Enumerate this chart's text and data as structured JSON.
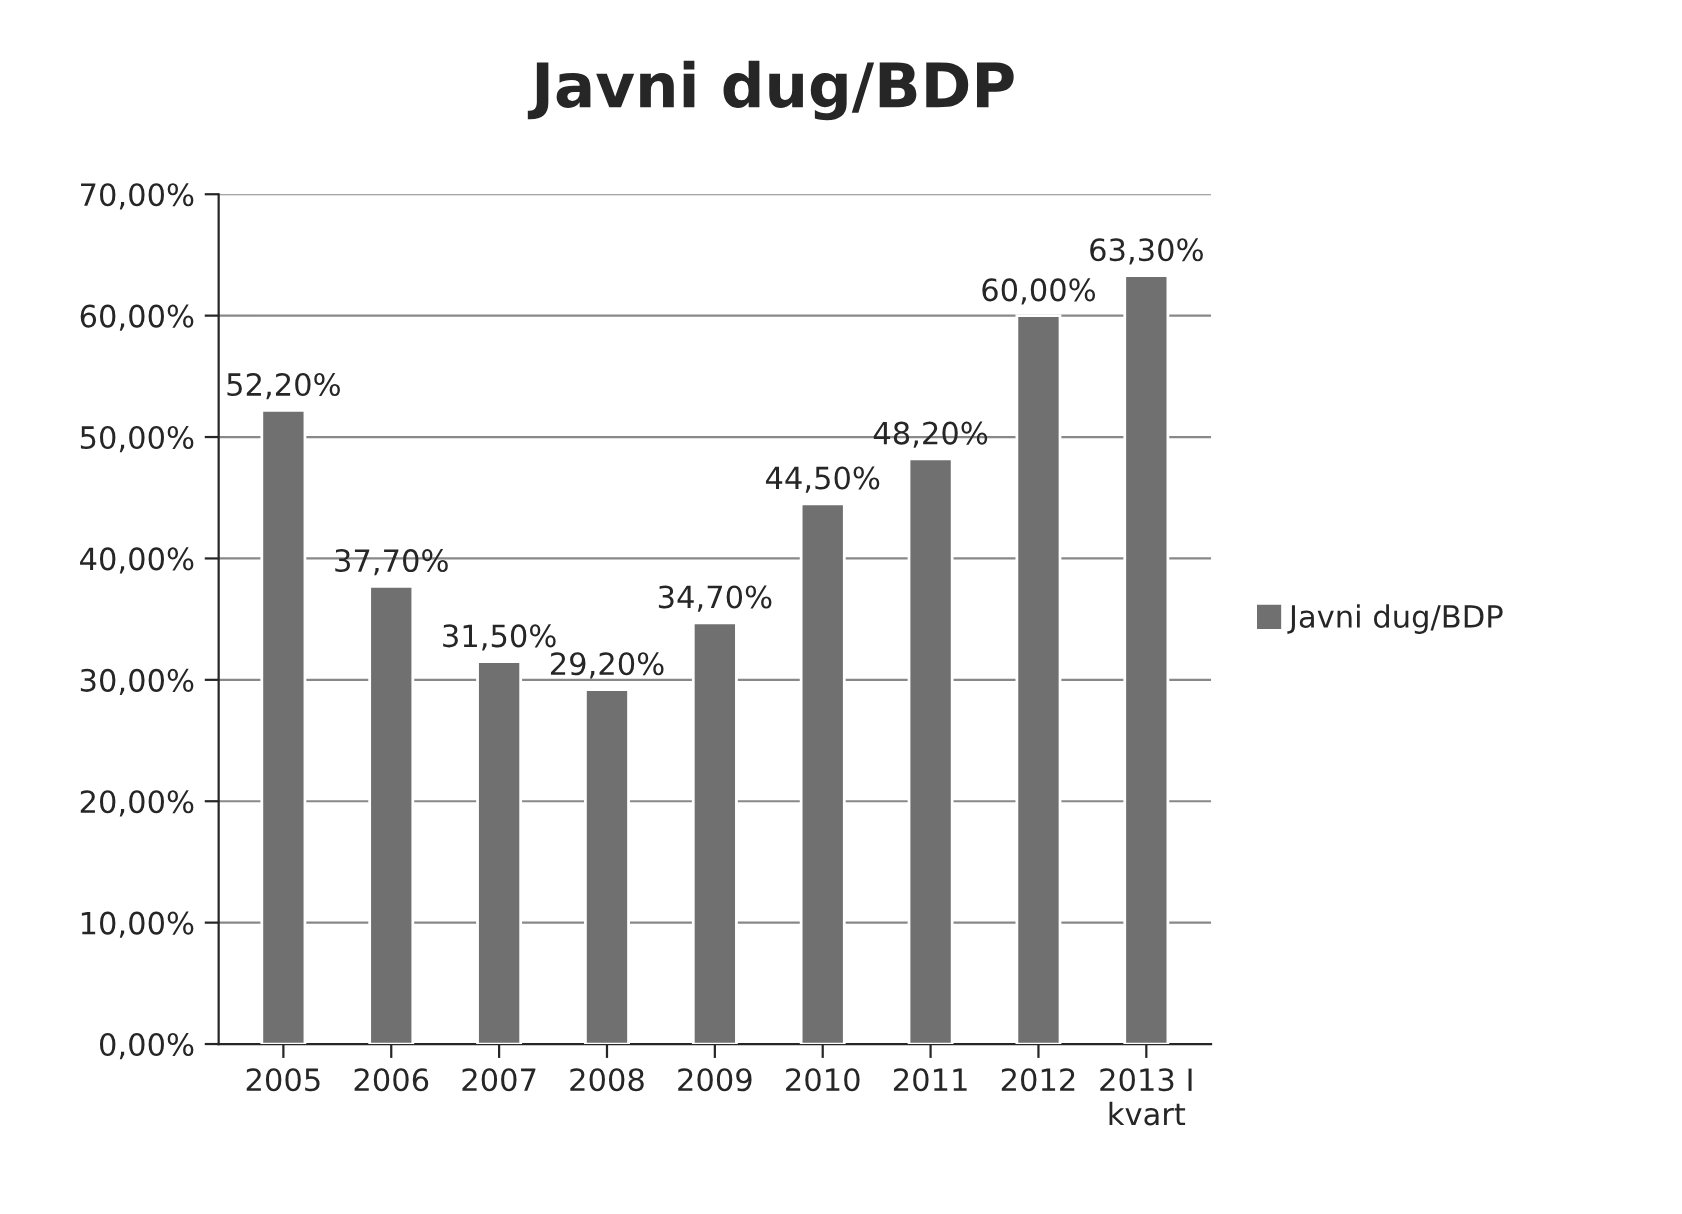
{
  "chart_data": {
    "type": "bar",
    "title": "Javni dug/BDP",
    "categories": [
      "2005",
      "2006",
      "2007",
      "2008",
      "2009",
      "2010",
      "2011",
      "2012",
      "2013 I\nkvart"
    ],
    "series": [
      {
        "name": "Javni dug/BDP",
        "color": "#707070",
        "values": [
          52.2,
          37.7,
          31.5,
          29.2,
          34.7,
          44.5,
          48.2,
          60.0,
          63.3
        ],
        "value_labels": [
          "52,20%",
          "37,70%",
          "31,50%",
          "29,20%",
          "34,70%",
          "44,50%",
          "48,20%",
          "60,00%",
          "63,30%"
        ]
      }
    ],
    "ylim": [
      0,
      70
    ],
    "yticks": [
      {
        "value": 0,
        "label": "0,00%"
      },
      {
        "value": 10,
        "label": "10,00%"
      },
      {
        "value": 20,
        "label": "20,00%"
      },
      {
        "value": 30,
        "label": "30,00%"
      },
      {
        "value": 40,
        "label": "40,00%"
      },
      {
        "value": 50,
        "label": "50,00%"
      },
      {
        "value": 60,
        "label": "60,00%"
      },
      {
        "value": 70,
        "label": "70,00%"
      }
    ],
    "grid": "y",
    "legend": "right"
  }
}
